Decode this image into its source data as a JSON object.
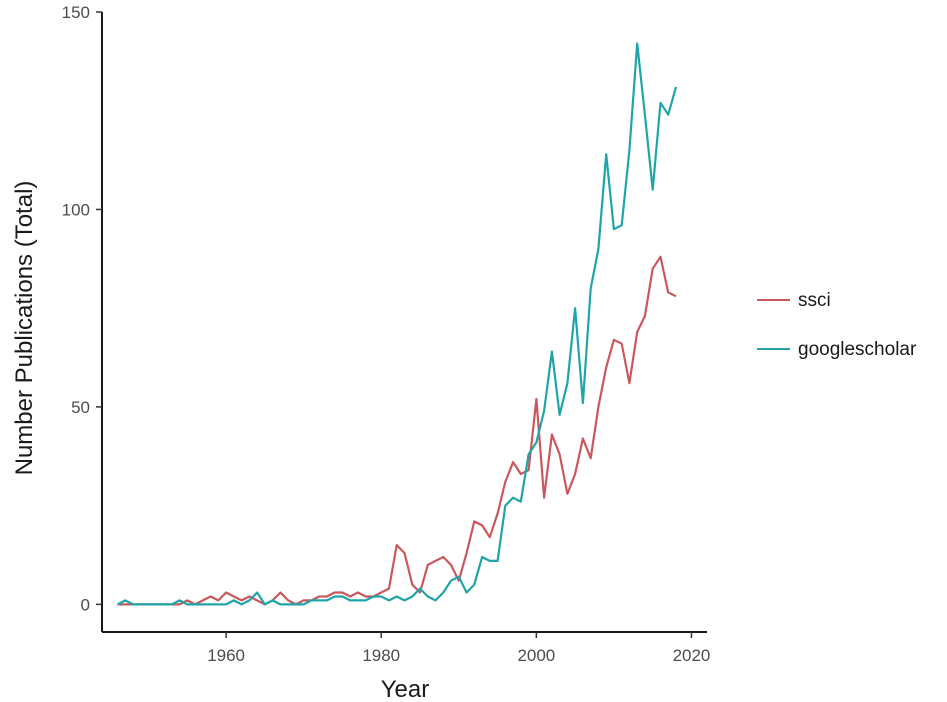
{
  "chart_data": {
    "type": "line",
    "xlabel": "Year",
    "ylabel": "Number Publications (Total)",
    "xlim": [
      1944,
      2022
    ],
    "ylim": [
      -7,
      150
    ],
    "x_ticks": [
      "1960",
      "1980",
      "2000",
      "2020"
    ],
    "y_ticks": [
      "0",
      "50",
      "100",
      "150"
    ],
    "grid": false,
    "legend_placement": "right",
    "series": [
      {
        "name": "ssci",
        "color": "#c9585c",
        "points": [
          [
            1946,
            0
          ],
          [
            1947,
            0
          ],
          [
            1948,
            0
          ],
          [
            1949,
            0
          ],
          [
            1950,
            0
          ],
          [
            1951,
            0
          ],
          [
            1952,
            0
          ],
          [
            1953,
            0
          ],
          [
            1954,
            0
          ],
          [
            1955,
            1
          ],
          [
            1956,
            0
          ],
          [
            1957,
            1
          ],
          [
            1958,
            2
          ],
          [
            1959,
            1
          ],
          [
            1960,
            3
          ],
          [
            1961,
            2
          ],
          [
            1962,
            1
          ],
          [
            1963,
            2
          ],
          [
            1964,
            1
          ],
          [
            1965,
            0
          ],
          [
            1966,
            1
          ],
          [
            1967,
            3
          ],
          [
            1968,
            1
          ],
          [
            1969,
            0
          ],
          [
            1970,
            1
          ],
          [
            1971,
            1
          ],
          [
            1972,
            2
          ],
          [
            1973,
            2
          ],
          [
            1974,
            3
          ],
          [
            1975,
            3
          ],
          [
            1976,
            2
          ],
          [
            1977,
            3
          ],
          [
            1978,
            2
          ],
          [
            1979,
            2
          ],
          [
            1980,
            3
          ],
          [
            1981,
            4
          ],
          [
            1982,
            15
          ],
          [
            1983,
            13
          ],
          [
            1984,
            5
          ],
          [
            1985,
            3
          ],
          [
            1986,
            10
          ],
          [
            1987,
            11
          ],
          [
            1988,
            12
          ],
          [
            1989,
            10
          ],
          [
            1990,
            6
          ],
          [
            1991,
            13
          ],
          [
            1992,
            21
          ],
          [
            1993,
            20
          ],
          [
            1994,
            17
          ],
          [
            1995,
            23
          ],
          [
            1996,
            31
          ],
          [
            1997,
            36
          ],
          [
            1998,
            33
          ],
          [
            1999,
            34
          ],
          [
            2000,
            52
          ],
          [
            2001,
            27
          ],
          [
            2002,
            43
          ],
          [
            2003,
            38
          ],
          [
            2004,
            28
          ],
          [
            2005,
            33
          ],
          [
            2006,
            42
          ],
          [
            2007,
            37
          ],
          [
            2008,
            50
          ],
          [
            2009,
            60
          ],
          [
            2010,
            67
          ],
          [
            2011,
            66
          ],
          [
            2012,
            56
          ],
          [
            2013,
            69
          ],
          [
            2014,
            73
          ],
          [
            2015,
            85
          ],
          [
            2016,
            88
          ],
          [
            2017,
            79
          ],
          [
            2018,
            78
          ]
        ]
      },
      {
        "name": "googlescholar",
        "color": "#1fa5a8",
        "points": [
          [
            1946,
            0
          ],
          [
            1947,
            1
          ],
          [
            1948,
            0
          ],
          [
            1949,
            0
          ],
          [
            1950,
            0
          ],
          [
            1951,
            0
          ],
          [
            1952,
            0
          ],
          [
            1953,
            0
          ],
          [
            1954,
            1
          ],
          [
            1955,
            0
          ],
          [
            1956,
            0
          ],
          [
            1957,
            0
          ],
          [
            1958,
            0
          ],
          [
            1959,
            0
          ],
          [
            1960,
            0
          ],
          [
            1961,
            1
          ],
          [
            1962,
            0
          ],
          [
            1963,
            1
          ],
          [
            1964,
            3
          ],
          [
            1965,
            0
          ],
          [
            1966,
            1
          ],
          [
            1967,
            0
          ],
          [
            1968,
            0
          ],
          [
            1969,
            0
          ],
          [
            1970,
            0
          ],
          [
            1971,
            1
          ],
          [
            1972,
            1
          ],
          [
            1973,
            1
          ],
          [
            1974,
            2
          ],
          [
            1975,
            2
          ],
          [
            1976,
            1
          ],
          [
            1977,
            1
          ],
          [
            1978,
            1
          ],
          [
            1979,
            2
          ],
          [
            1980,
            2
          ],
          [
            1981,
            1
          ],
          [
            1982,
            2
          ],
          [
            1983,
            1
          ],
          [
            1984,
            2
          ],
          [
            1985,
            4
          ],
          [
            1986,
            2
          ],
          [
            1987,
            1
          ],
          [
            1988,
            3
          ],
          [
            1989,
            6
          ],
          [
            1990,
            7
          ],
          [
            1991,
            3
          ],
          [
            1992,
            5
          ],
          [
            1993,
            12
          ],
          [
            1994,
            11
          ],
          [
            1995,
            11
          ],
          [
            1996,
            25
          ],
          [
            1997,
            27
          ],
          [
            1998,
            26
          ],
          [
            1999,
            38
          ],
          [
            2000,
            41
          ],
          [
            2001,
            49
          ],
          [
            2002,
            64
          ],
          [
            2003,
            48
          ],
          [
            2004,
            56
          ],
          [
            2005,
            75
          ],
          [
            2006,
            51
          ],
          [
            2007,
            80
          ],
          [
            2008,
            90
          ],
          [
            2009,
            114
          ],
          [
            2010,
            95
          ],
          [
            2011,
            96
          ],
          [
            2012,
            115
          ],
          [
            2013,
            142
          ],
          [
            2014,
            124
          ],
          [
            2015,
            105
          ],
          [
            2016,
            127
          ],
          [
            2017,
            124
          ],
          [
            2018,
            131
          ]
        ]
      }
    ]
  }
}
